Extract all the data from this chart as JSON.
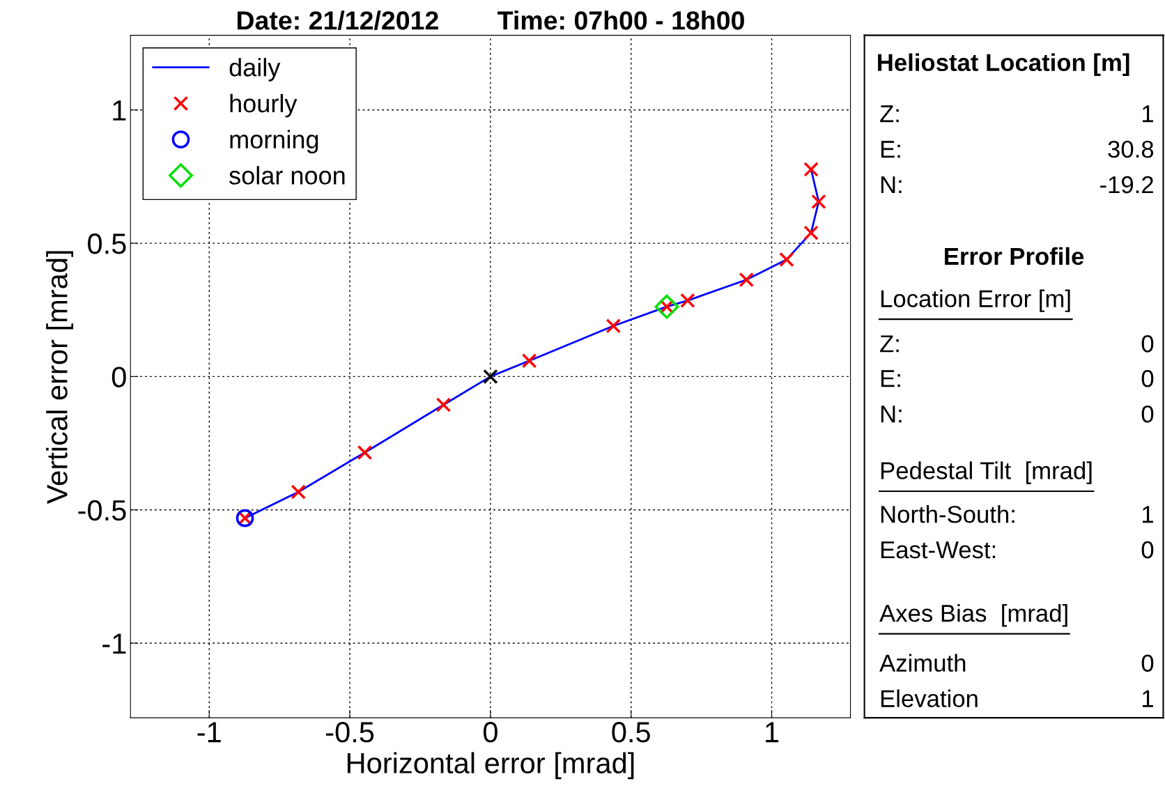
{
  "chart_data": [
    {
      "type": "line",
      "title": "Date: 21/12/2012        Time: 07h00 - 18h00",
      "xlabel": "Horizontal error [mrad]",
      "ylabel": "Vertical error [mrad]",
      "xlim": [
        -1.28,
        1.28
      ],
      "ylim": [
        -1.28,
        1.28
      ],
      "xticks": [
        -1,
        -0.5,
        0,
        0.5,
        1
      ],
      "yticks": [
        -1,
        -0.5,
        0,
        0.5,
        1
      ],
      "grid": true,
      "legend": "top left",
      "series": [
        {
          "name": "daily",
          "type": "line",
          "color": "#0000ff",
          "marker": "none",
          "line_style": "solid",
          "x": [
            -0.873,
            -0.683,
            -0.447,
            -0.167,
            0.0,
            0.138,
            0.437,
            0.627,
            0.701,
            0.91,
            1.053,
            1.14,
            1.167,
            1.14
          ],
          "values": [
            -0.531,
            -0.433,
            -0.285,
            -0.106,
            0.0,
            0.059,
            0.19,
            0.262,
            0.285,
            0.363,
            0.439,
            0.539,
            0.656,
            0.777
          ]
        },
        {
          "name": "hourly",
          "type": "scatter",
          "color": "#ff0000",
          "marker": "cross",
          "x": [
            -0.873,
            -0.683,
            -0.447,
            -0.167,
            0.138,
            0.437,
            0.627,
            0.701,
            0.91,
            1.053,
            1.14,
            1.167,
            1.14
          ],
          "values": [
            -0.531,
            -0.433,
            -0.285,
            -0.106,
            0.059,
            0.19,
            0.262,
            0.285,
            0.363,
            0.439,
            0.539,
            0.656,
            0.777
          ]
        },
        {
          "name": "morning",
          "type": "scatter",
          "color": "#0000ff",
          "marker": "circle",
          "x": [
            -0.873
          ],
          "values": [
            -0.531
          ]
        },
        {
          "name": "solar noon",
          "type": "scatter",
          "color": "#00e000",
          "marker": "diamond",
          "x": [
            0.627
          ],
          "values": [
            0.262
          ]
        },
        {
          "type": "scatter",
          "color": "#000000",
          "marker": "cross",
          "x": [
            0.0
          ],
          "values": [
            0.0
          ]
        }
      ]
    },
    {
      "type": "other",
      "title": "Heliostat Location [m]",
      "annotations": [
        "Z:",
        "1",
        "E:",
        "30.8",
        "N:",
        "-19.2",
        "Error Profile",
        "Location Error [m]",
        "Z:",
        "0",
        "E:",
        "0",
        "N:",
        "0",
        "Pedestal Tilt  [mrad]",
        "North-South:",
        "1",
        "East-West:",
        "0",
        "Axes Bias  [mrad]",
        "Azimuth",
        "0",
        "Elevation",
        "1"
      ]
    }
  ]
}
